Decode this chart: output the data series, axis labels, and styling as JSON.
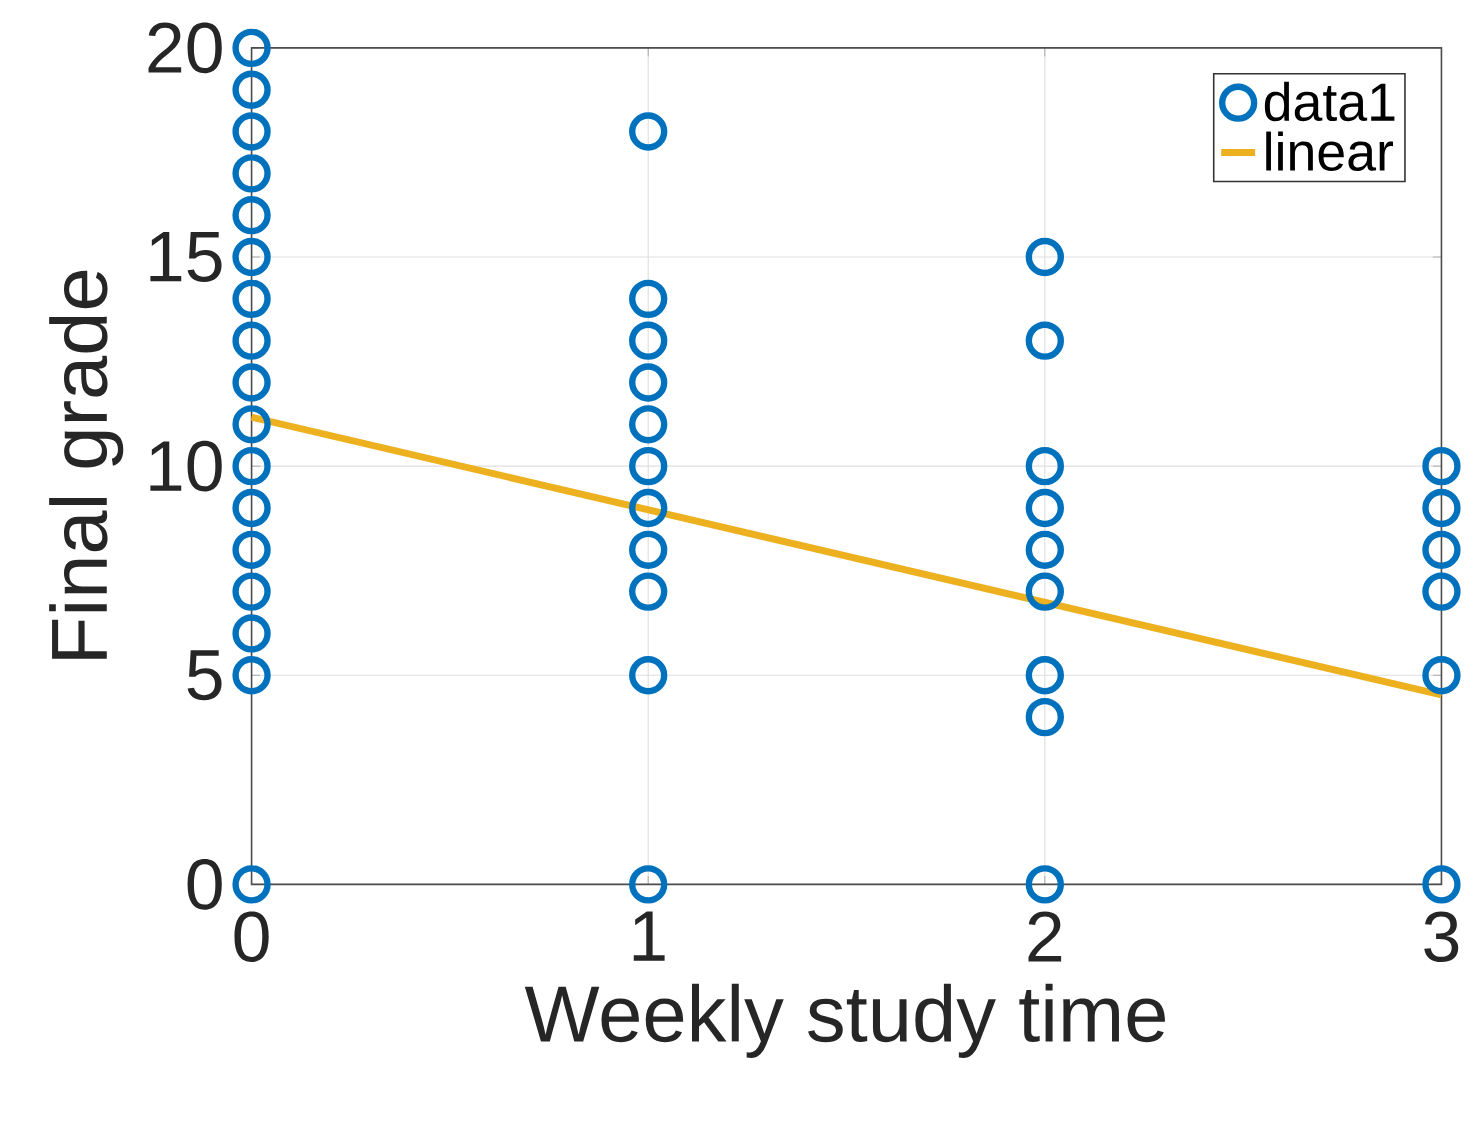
{
  "chart_data": {
    "type": "scatter",
    "xlabel": "Weekly study time",
    "ylabel": "Final grade",
    "xlim": [
      0,
      3
    ],
    "ylim": [
      0,
      20
    ],
    "xticks": [
      0,
      1,
      2,
      3
    ],
    "yticks": [
      0,
      5,
      10,
      15,
      20
    ],
    "grid": true,
    "legend": "top right",
    "series": [
      {
        "name": "data1",
        "color": "#0072bd",
        "marker": "circle",
        "x": [
          0,
          0,
          0,
          0,
          0,
          0,
          0,
          0,
          0,
          0,
          0,
          0,
          0,
          0,
          0,
          0,
          0,
          1,
          1,
          1,
          1,
          1,
          1,
          1,
          1,
          1,
          1,
          1,
          2,
          2,
          2,
          2,
          2,
          2,
          2,
          2,
          2,
          3,
          3,
          3,
          3,
          3,
          3
        ],
        "values": [
          0,
          5,
          6,
          7,
          8,
          9,
          10,
          11,
          12,
          13,
          14,
          15,
          16,
          17,
          18,
          19,
          20,
          0,
          5,
          7,
          8,
          9,
          10,
          11,
          12,
          13,
          14,
          18,
          0,
          4,
          5,
          7,
          8,
          9,
          10,
          13,
          15,
          0,
          5,
          7,
          8,
          9,
          10
        ]
      },
      {
        "name": "linear",
        "type": "line",
        "color": "#edb120",
        "line_style": "solid",
        "x": [
          0,
          3
        ],
        "values": [
          11.17,
          4.53
        ]
      }
    ]
  }
}
